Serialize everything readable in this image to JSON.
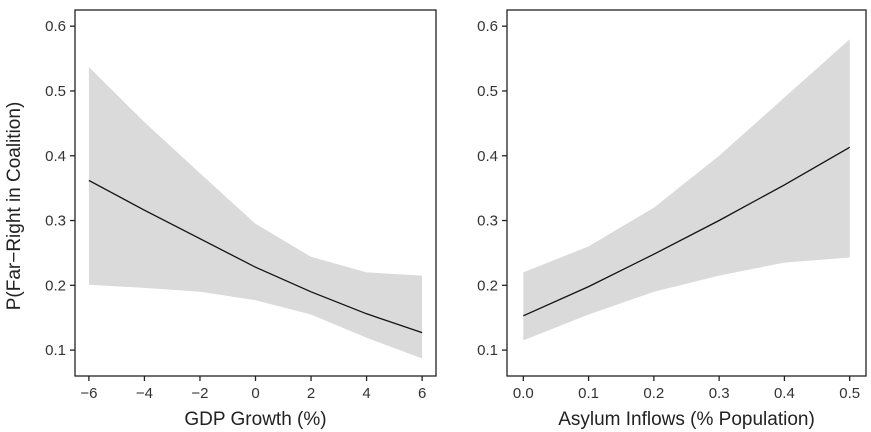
{
  "chart_data": [
    {
      "type": "line",
      "xlabel": "GDP Growth (%)",
      "ylabel": "P(Far−Right in Coalition)",
      "xlim": [
        -6.5,
        6.5
      ],
      "ylim": [
        0.06,
        0.625
      ],
      "x_ticks": [
        -6,
        -4,
        -2,
        0,
        2,
        4,
        6
      ],
      "x_tick_labels": [
        "−6",
        "−4",
        "−2",
        "0",
        "2",
        "4",
        "6"
      ],
      "y_ticks": [
        0.1,
        0.2,
        0.3,
        0.4,
        0.5,
        0.6
      ],
      "y_tick_labels": [
        "0.1",
        "0.2",
        "0.3",
        "0.4",
        "0.5",
        "0.6"
      ],
      "grid": false,
      "series": [
        {
          "x": [
            -6,
            -4,
            -2,
            0,
            2,
            4,
            6
          ],
          "values": [
            0.362,
            0.316,
            0.272,
            0.228,
            0.19,
            0.156,
            0.127
          ],
          "lower": [
            0.201,
            0.196,
            0.19,
            0.177,
            0.155,
            0.119,
            0.087
          ],
          "upper": [
            0.537,
            0.452,
            0.373,
            0.295,
            0.244,
            0.22,
            0.215
          ]
        }
      ]
    },
    {
      "type": "line",
      "xlabel": "Asylum Inflows (% Population)",
      "ylabel": "",
      "xlim": [
        -0.025,
        0.525
      ],
      "ylim": [
        0.06,
        0.625
      ],
      "x_ticks": [
        0.0,
        0.1,
        0.2,
        0.3,
        0.4,
        0.5
      ],
      "x_tick_labels": [
        "0.0",
        "0.1",
        "0.2",
        "0.3",
        "0.4",
        "0.5"
      ],
      "y_ticks": [
        0.1,
        0.2,
        0.3,
        0.4,
        0.5,
        0.6
      ],
      "y_tick_labels": [
        "0.1",
        "0.2",
        "0.3",
        "0.4",
        "0.5",
        "0.6"
      ],
      "grid": false,
      "series": [
        {
          "x": [
            0.0,
            0.1,
            0.2,
            0.3,
            0.4,
            0.5
          ],
          "values": [
            0.153,
            0.198,
            0.248,
            0.3,
            0.355,
            0.413
          ],
          "lower": [
            0.115,
            0.155,
            0.19,
            0.215,
            0.235,
            0.243
          ],
          "upper": [
            0.22,
            0.26,
            0.32,
            0.4,
            0.49,
            0.58
          ]
        }
      ]
    }
  ]
}
